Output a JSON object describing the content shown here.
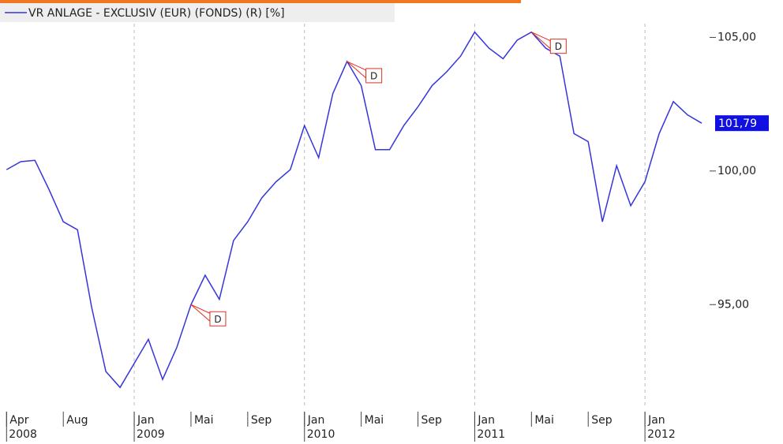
{
  "chart_data": {
    "type": "line",
    "x": [
      "2008-04",
      "2008-05",
      "2008-06",
      "2008-07",
      "2008-08",
      "2008-09",
      "2008-10",
      "2008-11",
      "2008-12",
      "2009-01",
      "2009-02",
      "2009-03",
      "2009-04",
      "2009-05",
      "2009-06",
      "2009-07",
      "2009-08",
      "2009-09",
      "2009-10",
      "2009-11",
      "2009-12",
      "2010-01",
      "2010-02",
      "2010-03",
      "2010-04",
      "2010-05",
      "2010-06",
      "2010-07",
      "2010-08",
      "2010-09",
      "2010-10",
      "2010-11",
      "2010-12",
      "2011-01",
      "2011-02",
      "2011-03",
      "2011-04",
      "2011-05",
      "2011-06",
      "2011-07",
      "2011-08",
      "2011-09",
      "2011-10",
      "2011-11",
      "2011-12",
      "2012-01",
      "2012-02",
      "2012-03",
      "2012-04",
      "2012-05"
    ],
    "series": [
      {
        "name": "VR ANLAGE - EXCLUSIV (EUR) (FONDS) (R) [%]",
        "color": "#3535dd",
        "values": [
          100.05,
          100.35,
          100.4,
          99.3,
          98.1,
          97.8,
          94.9,
          92.5,
          91.9,
          92.8,
          93.7,
          92.2,
          93.4,
          95.0,
          96.1,
          95.2,
          97.4,
          98.1,
          99.0,
          99.6,
          100.05,
          101.7,
          100.5,
          102.9,
          104.1,
          103.2,
          100.8,
          100.8,
          101.7,
          102.4,
          103.2,
          103.7,
          104.3,
          105.2,
          104.6,
          104.2,
          104.9,
          105.2,
          104.6,
          104.3,
          101.4,
          101.1,
          98.1,
          100.2,
          98.7,
          99.6,
          101.4,
          102.6,
          102.1,
          101.79
        ],
        "value_labels": [
          null,
          null,
          null,
          null,
          null,
          null,
          null,
          null,
          null,
          null,
          null,
          null,
          null,
          null,
          null,
          null,
          null,
          null,
          null,
          null,
          null,
          null,
          null,
          null,
          null,
          null,
          null,
          null,
          null,
          null,
          null,
          null,
          null,
          null,
          null,
          null,
          null,
          null,
          null,
          null,
          null,
          null,
          null,
          null,
          null,
          null,
          null,
          null,
          null,
          "101,79"
        ]
      }
    ],
    "xlim": [
      "2008-04",
      "2012-05"
    ],
    "xticks": [
      {
        "value": "2008-04",
        "label": "Apr"
      },
      {
        "value": "2008-08",
        "label": "Aug"
      },
      {
        "value": "2009-01",
        "label": "Jan"
      },
      {
        "value": "2009-05",
        "label": "Mai"
      },
      {
        "value": "2009-09",
        "label": "Sep"
      },
      {
        "value": "2010-01",
        "label": "Jan"
      },
      {
        "value": "2010-05",
        "label": "Mai"
      },
      {
        "value": "2010-09",
        "label": "Sep"
      },
      {
        "value": "2011-01",
        "label": "Jan"
      },
      {
        "value": "2011-05",
        "label": "Mai"
      },
      {
        "value": "2011-09",
        "label": "Sep"
      },
      {
        "value": "2012-01",
        "label": "Jan"
      }
    ],
    "year_labels": [
      {
        "value": "2008-04",
        "label": "2008"
      },
      {
        "value": "2009-01",
        "label": "2009"
      },
      {
        "value": "2010-01",
        "label": "2010"
      },
      {
        "value": "2011-01",
        "label": "2011"
      },
      {
        "value": "2012-01",
        "label": "2012"
      }
    ],
    "ylim": [
      91.2,
      106.4
    ],
    "yticks": [
      {
        "value": 95,
        "label": "95,00"
      },
      {
        "value": 100,
        "label": "100,00"
      },
      {
        "value": 105,
        "label": "105,00"
      }
    ],
    "annotations": [
      {
        "x": "2009-05",
        "label": "D"
      },
      {
        "x": "2010-04",
        "label": "D"
      },
      {
        "x": "2011-05",
        "label": "D"
      }
    ],
    "grid": true
  }
}
